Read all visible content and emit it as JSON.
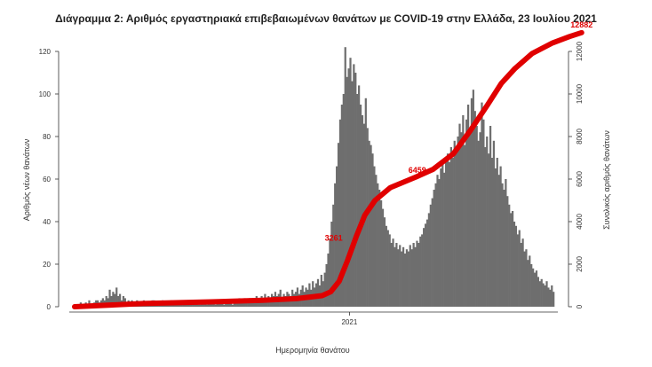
{
  "chart_data": {
    "type": "bar",
    "title": "Διάγραμμα 2: Αριθμός εργαστηριακά επιβεβαιωμένων θανάτων με COVID-19 στην Ελλάδα, 23 Ιουλίου 2021",
    "xlabel": "Ημερομηνία θανάτου",
    "ylabel_left": "Αριθμός νέων θανάτων",
    "ylabel_right": "Συνολικός αριθμός θανάτων",
    "x_tick_labels": [
      "2021"
    ],
    "ylim_left": [
      0,
      120
    ],
    "y_ticks_left": [
      0,
      20,
      40,
      60,
      80,
      100,
      120
    ],
    "ylim_right": [
      0,
      12000
    ],
    "y_ticks_right": [
      "0",
      "2000",
      "4000",
      "6000",
      "8000",
      "10000",
      "12000"
    ],
    "bar_color": "#6e6e6e",
    "line_color": "#e00000",
    "daily_deaths": [
      1,
      1,
      1,
      2,
      1,
      1,
      2,
      1,
      3,
      1,
      1,
      2,
      3,
      3,
      2,
      3,
      4,
      3,
      5,
      4,
      8,
      5,
      7,
      6,
      9,
      5,
      6,
      3,
      5,
      4,
      2,
      3,
      2,
      3,
      1,
      2,
      3,
      1,
      2,
      2,
      3,
      1,
      2,
      1,
      2,
      3,
      3,
      2,
      2,
      1,
      2,
      3,
      2,
      1,
      2,
      1,
      3,
      2,
      3,
      1,
      2,
      3,
      1,
      2,
      1,
      2,
      3,
      1,
      2,
      2,
      1,
      2,
      1,
      1,
      2,
      3,
      2,
      1,
      2,
      2,
      3,
      2,
      1,
      3,
      2,
      2,
      3,
      1,
      2,
      3,
      2,
      3,
      1,
      2,
      3,
      2,
      4,
      3,
      2,
      4,
      3,
      2,
      4,
      3,
      3,
      4,
      5,
      3,
      4,
      5,
      4,
      6,
      3,
      5,
      4,
      6,
      5,
      7,
      5,
      6,
      8,
      4,
      6,
      5,
      7,
      6,
      5,
      8,
      6,
      7,
      9,
      6,
      8,
      10,
      7,
      9,
      8,
      11,
      8,
      12,
      9,
      11,
      13,
      10,
      15,
      12,
      16,
      20,
      25,
      32,
      40,
      48,
      58,
      66,
      77,
      88,
      95,
      100,
      122,
      108,
      112,
      117,
      106,
      114,
      110,
      100,
      104,
      95,
      90,
      86,
      98,
      84,
      78,
      76,
      72,
      66,
      62,
      58,
      55,
      50,
      46,
      42,
      38,
      36,
      34,
      30,
      32,
      28,
      30,
      27,
      29,
      26,
      28,
      25,
      27,
      26,
      29,
      27,
      30,
      28,
      31,
      30,
      33,
      34,
      37,
      39,
      41,
      44,
      48,
      51,
      55,
      58,
      62,
      60,
      65,
      68,
      63,
      70,
      72,
      68,
      75,
      70,
      78,
      73,
      80,
      86,
      82,
      90,
      76,
      88,
      95,
      84,
      98,
      102,
      92,
      85,
      78,
      82,
      96,
      88,
      75,
      80,
      72,
      85,
      70,
      78,
      65,
      70,
      62,
      66,
      58,
      55,
      60,
      52,
      48,
      44,
      45,
      40,
      38,
      34,
      36,
      30,
      32,
      26,
      27,
      22,
      24,
      20,
      18,
      16,
      17,
      14,
      12,
      13,
      11,
      10,
      12,
      9,
      8,
      10,
      7
    ],
    "cumulative_series": {
      "name": "Συνολικός αριθμός θανάτων",
      "points": [
        [
          0,
          0
        ],
        [
          40,
          150
        ],
        [
          80,
          230
        ],
        [
          110,
          300
        ],
        [
          130,
          380
        ],
        [
          145,
          520
        ],
        [
          150,
          700
        ],
        [
          155,
          1200
        ],
        [
          160,
          2200
        ],
        [
          165,
          3300
        ],
        [
          170,
          4300
        ],
        [
          176,
          5000
        ],
        [
          185,
          5600
        ],
        [
          200,
          6100
        ],
        [
          210,
          6459
        ],
        [
          222,
          7200
        ],
        [
          232,
          8300
        ],
        [
          242,
          9500
        ],
        [
          250,
          10500
        ],
        [
          258,
          11200
        ],
        [
          268,
          11900
        ],
        [
          280,
          12400
        ],
        [
          290,
          12700
        ],
        [
          297,
          12882
        ]
      ]
    },
    "annotations": [
      {
        "text": "3261",
        "x": 158,
        "y": 3261
      },
      {
        "text": "6459",
        "x": 207,
        "y": 6459
      },
      {
        "text": "12882",
        "x": 297,
        "y": 12882
      }
    ]
  }
}
